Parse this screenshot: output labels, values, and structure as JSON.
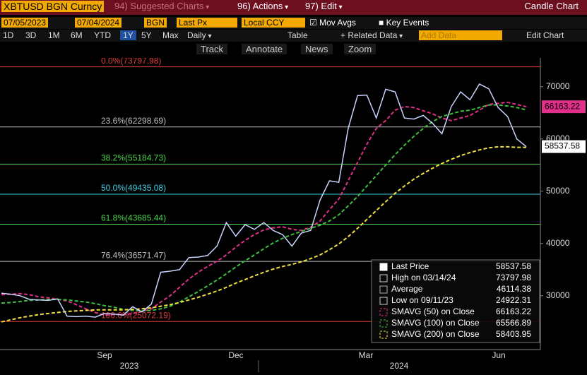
{
  "header": {
    "ticker": "XBTUSD BGN Curncy",
    "menus": [
      "94) Suggested Charts",
      "96) Actions",
      "97) Edit"
    ],
    "title": "Candle Chart"
  },
  "controls": {
    "start_date": "07/05/2023",
    "end_date": "07/04/2024",
    "source": "BGN",
    "field": "Last Px",
    "currency": "Local CCY",
    "mov_avgs": "Mov Avgs",
    "key_events": "Key Events",
    "periods": [
      "1D",
      "3D",
      "1M",
      "6M",
      "YTD",
      "1Y",
      "5Y",
      "Max"
    ],
    "frequency": "Daily",
    "table": "Table",
    "related": "+ Related Data",
    "add_data": "Add Data",
    "edit_chart": "Edit Chart",
    "tools": [
      "Track",
      "Annotate",
      "News",
      "Zoom"
    ]
  },
  "chart_data": {
    "type": "line",
    "ylim": [
      19700,
      75100
    ],
    "yticks": [
      30000,
      40000,
      50000,
      60000,
      70000
    ],
    "x_labels": [
      "Sep",
      "Dec",
      "Mar",
      "Jun"
    ],
    "years": [
      "2023",
      "2024"
    ],
    "series": [
      {
        "name": "Last Price",
        "color": "#c8d4ff",
        "values": [
          30500,
          30300,
          30000,
          29300,
          29200,
          29100,
          29400,
          26100,
          26000,
          26100,
          25900,
          26600,
          26500,
          26300,
          27900,
          26900,
          28400,
          34500,
          34700,
          35000,
          37300,
          37400,
          37700,
          39500,
          44000,
          41400,
          43600,
          42700,
          44000,
          42500,
          41700,
          39500,
          42000,
          42500,
          48300,
          52000,
          51700,
          62000,
          68300,
          68400,
          64000,
          69500,
          69000,
          64000,
          63800,
          64500,
          63000,
          61000,
          66200,
          69000,
          67500,
          70500,
          69600,
          66000,
          64300,
          60000,
          58537.58
        ]
      },
      {
        "name": "SMAVG (50)",
        "color": "#e0308a",
        "values": [
          30200,
          30300,
          30400,
          30200,
          29800,
          29600,
          29300,
          29000,
          28300,
          27500,
          26800,
          26300,
          26400,
          26400,
          26600,
          27000,
          27500,
          28800,
          30000,
          31600,
          33200,
          34500,
          35600,
          36600,
          37800,
          39300,
          40600,
          41700,
          42600,
          43000,
          43200,
          42700,
          42500,
          43100,
          44300,
          46500,
          48500,
          52000,
          55500,
          59000,
          62000,
          63500,
          65500,
          66200,
          66000,
          65400,
          64800,
          64000,
          63500,
          64000,
          64500,
          65500,
          66600,
          66800,
          67000,
          66600,
          66163.22
        ]
      },
      {
        "name": "SMAVG (100)",
        "color": "#3fbf3f",
        "values": [
          28600,
          28700,
          28900,
          29100,
          29200,
          29300,
          29300,
          29200,
          29000,
          28800,
          28500,
          28100,
          27800,
          27400,
          27200,
          27100,
          27200,
          27500,
          28000,
          28800,
          29800,
          30800,
          31900,
          33000,
          34200,
          35500,
          36700,
          37800,
          39000,
          40100,
          41000,
          41700,
          42300,
          42900,
          43500,
          44300,
          45500,
          47200,
          49000,
          51000,
          53000,
          55000,
          57000,
          58800,
          60500,
          62000,
          63300,
          64300,
          64800,
          65300,
          65500,
          66000,
          66500,
          66500,
          66300,
          66000,
          65566.89
        ]
      },
      {
        "name": "SMAVG (200)",
        "color": "#f0e040",
        "values": [
          25000,
          25400,
          25800,
          26100,
          26400,
          26600,
          26800,
          27000,
          27100,
          27200,
          27300,
          27300,
          27300,
          27300,
          27400,
          27500,
          27700,
          28000,
          28300,
          28700,
          29200,
          29700,
          30300,
          30900,
          31600,
          32400,
          33100,
          33800,
          34500,
          35100,
          35600,
          36000,
          36500,
          37100,
          37800,
          38800,
          39900,
          41300,
          42900,
          44600,
          46300,
          48000,
          49600,
          51000,
          52300,
          53400,
          54400,
          55300,
          56100,
          56800,
          57400,
          57900,
          58300,
          58500,
          58500,
          58400,
          58403.95
        ]
      }
    ],
    "fib_levels": [
      {
        "label": "0.0%(73797.98)",
        "value": 73797.98,
        "color": "#e03a3a"
      },
      {
        "label": "23.6%(62298.69)",
        "value": 62298.69,
        "color": "#c0c0c0"
      },
      {
        "label": "38.2%(55184.73)",
        "value": 55184.73,
        "color": "#4cd44c"
      },
      {
        "label": "50.0%(49435.08)",
        "value": 49435.08,
        "color": "#40d0e0"
      },
      {
        "label": "61.8%(43685.44)",
        "value": 43685.44,
        "color": "#4cd44c"
      },
      {
        "label": "76.4%(36571.47)",
        "value": 36571.47,
        "color": "#c0c0c0"
      },
      {
        "label": "100.0%(25072.19)",
        "value": 25072.19,
        "color": "#e03a3a"
      }
    ],
    "legend": [
      {
        "name": "Last Price",
        "value": 58537.58
      },
      {
        "name": "High on 03/14/24",
        "value": 73797.98
      },
      {
        "name": "Average",
        "value": 46114.38
      },
      {
        "name": "Low on 09/11/23",
        "value": 24922.31
      },
      {
        "name": "SMAVG (50)  on Close",
        "value": 66163.22
      },
      {
        "name": "SMAVG (100)  on Close",
        "value": 65566.89
      },
      {
        "name": "SMAVG (200)  on Close",
        "value": 58403.95
      }
    ]
  }
}
